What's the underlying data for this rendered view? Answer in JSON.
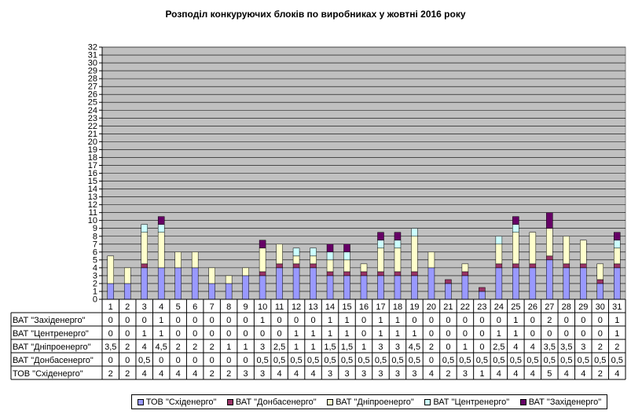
{
  "chart_data": {
    "type": "bar",
    "stacked": true,
    "title": "Розподіл конкуруючих  блоків по виробниках  у жовтні 2016 року",
    "ylim": [
      0,
      32
    ],
    "y_ticks": [
      "0",
      "1",
      "2",
      "3",
      "4",
      "5",
      "6",
      "7",
      "8",
      "9",
      "10",
      "11",
      "12",
      "13",
      "14",
      "15",
      "16",
      "17",
      "18",
      "19",
      "20",
      "21",
      "22",
      "23",
      "24",
      "25",
      "26",
      "27",
      "28",
      "29",
      "30",
      "31",
      "32"
    ],
    "grid": true,
    "legend_position": "bottom",
    "categories": [
      "1",
      "2",
      "3",
      "4",
      "5",
      "6",
      "7",
      "8",
      "9",
      "10",
      "11",
      "12",
      "13",
      "14",
      "15",
      "16",
      "17",
      "18",
      "19",
      "20",
      "21",
      "22",
      "23",
      "24",
      "25",
      "26",
      "27",
      "28",
      "29",
      "30",
      "31"
    ],
    "series": [
      {
        "name": "ТОВ \"Східенерго\"",
        "color": "#9999ff",
        "values": [
          2,
          2,
          4,
          4,
          4,
          4,
          2,
          2,
          3,
          3,
          4,
          4,
          4,
          3,
          3,
          3,
          3,
          3,
          3,
          4,
          2,
          3,
          1,
          4,
          4,
          4,
          5,
          4,
          4,
          2,
          4
        ],
        "labels": [
          "2",
          "2",
          "4",
          "4",
          "4",
          "4",
          "2",
          "2",
          "3",
          "3",
          "4",
          "4",
          "4",
          "3",
          "3",
          "3",
          "3",
          "3",
          "3",
          "4",
          "2",
          "3",
          "1",
          "4",
          "4",
          "4",
          "5",
          "4",
          "4",
          "2",
          "4"
        ]
      },
      {
        "name": "ВАТ \"Донбасенерго\"",
        "color": "#993366",
        "values": [
          0,
          0,
          0.5,
          0,
          0,
          0,
          0,
          0,
          0,
          0.5,
          0.5,
          0.5,
          0.5,
          0.5,
          0.5,
          0.5,
          0.5,
          0.5,
          0.5,
          0,
          0.5,
          0.5,
          0.5,
          0.5,
          0.5,
          0.5,
          0.5,
          0.5,
          0.5,
          0.5,
          0.5
        ],
        "labels": [
          "0",
          "0",
          "0,5",
          "0",
          "0",
          "0",
          "0",
          "0",
          "0",
          "0,5",
          "0,5",
          "0,5",
          "0,5",
          "0,5",
          "0,5",
          "0,5",
          "0,5",
          "0,5",
          "0,5",
          "0",
          "0,5",
          "0,5",
          "0,5",
          "0,5",
          "0,5",
          "0,5",
          "0,5",
          "0,5",
          "0,5",
          "0,5",
          "0,5"
        ]
      },
      {
        "name": "ВАТ \"Дніпроенерго\"",
        "color": "#ffffcc",
        "values": [
          3.5,
          2,
          4,
          4.5,
          2,
          2,
          2,
          1,
          1,
          3,
          2.5,
          1,
          1,
          1.5,
          1.5,
          1,
          3,
          3,
          4.5,
          2,
          0,
          1,
          0,
          2.5,
          4,
          4,
          3.5,
          3.5,
          3,
          2,
          2
        ],
        "labels": [
          "3,5",
          "2",
          "4",
          "4,5",
          "2",
          "2",
          "2",
          "1",
          "1",
          "3",
          "2,5",
          "1",
          "1",
          "1,5",
          "1,5",
          "1",
          "3",
          "3",
          "4,5",
          "2",
          "0",
          "1",
          "0",
          "2,5",
          "4",
          "4",
          "3,5",
          "3,5",
          "3",
          "2",
          "2"
        ]
      },
      {
        "name": "ВАТ \"Центренерго\"",
        "color": "#ccffff",
        "values": [
          0,
          0,
          1,
          1,
          0,
          0,
          0,
          0,
          0,
          0,
          0,
          1,
          1,
          1,
          1,
          0,
          1,
          1,
          1,
          0,
          0,
          0,
          0,
          1,
          1,
          0,
          0,
          0,
          0,
          0,
          1
        ],
        "labels": [
          "0",
          "0",
          "1",
          "1",
          "0",
          "0",
          "0",
          "0",
          "0",
          "0",
          "0",
          "1",
          "1",
          "1",
          "1",
          "0",
          "1",
          "1",
          "1",
          "0",
          "0",
          "0",
          "0",
          "1",
          "1",
          "0",
          "0",
          "0",
          "0",
          "0",
          "1"
        ]
      },
      {
        "name": "ВАТ \"Західенерго\"",
        "color": "#660066",
        "values": [
          0,
          0,
          0,
          1,
          0,
          0,
          0,
          0,
          0,
          1,
          0,
          0,
          0,
          1,
          1,
          0,
          1,
          1,
          0,
          0,
          0,
          0,
          0,
          0,
          1,
          0,
          2,
          0,
          0,
          0,
          1
        ],
        "labels": [
          "0",
          "0",
          "0",
          "1",
          "0",
          "0",
          "0",
          "0",
          "0",
          "1",
          "0",
          "0",
          "0",
          "1",
          "1",
          "0",
          "1",
          "1",
          "0",
          "0",
          "0",
          "0",
          "0",
          "0",
          "1",
          "0",
          "2",
          "0",
          "0",
          "0",
          "1"
        ]
      }
    ],
    "table_row_order": [
      4,
      3,
      2,
      1,
      0
    ]
  }
}
